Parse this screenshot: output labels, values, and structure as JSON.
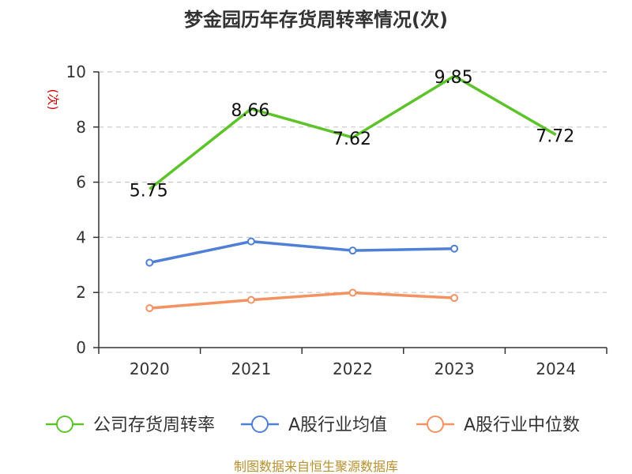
{
  "chart_data": {
    "type": "line",
    "title": "梦金园历年存货周转率情况(次)",
    "ylabel": "(次)",
    "categories": [
      "2020",
      "2021",
      "2022",
      "2023",
      "2024"
    ],
    "ylim": [
      0,
      10
    ],
    "yticks": [
      "0",
      "2",
      "4",
      "6",
      "8",
      "10"
    ],
    "grid": true,
    "legend_position": "bottom",
    "series": [
      {
        "name": "公司存货周转率",
        "values": [
          5.75,
          8.66,
          7.62,
          9.85,
          7.72
        ],
        "labels": [
          "5.75",
          "8.66",
          "7.62",
          "9.85",
          "7.72"
        ],
        "color": "#5cc42a",
        "markers": false
      },
      {
        "name": "A股行业均值",
        "values": [
          3.08,
          3.85,
          3.52,
          3.59,
          null
        ],
        "color": "#4f7fd6",
        "markers": true
      },
      {
        "name": "A股行业中位数",
        "values": [
          1.43,
          1.73,
          1.99,
          1.8,
          null
        ],
        "color": "#f59262",
        "markers": true
      }
    ]
  },
  "source_text": "制图数据来自恒生聚源数据库"
}
